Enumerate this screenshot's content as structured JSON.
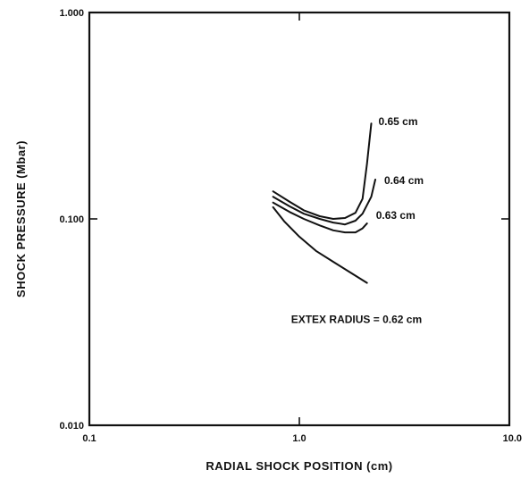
{
  "chart_data": {
    "type": "line",
    "xlabel": "RADIAL SHOCK POSITION (cm)",
    "ylabel": "SHOCK PRESSURE (Mbar)",
    "x_scale": "log",
    "y_scale": "log",
    "xlim": [
      0.1,
      10.0
    ],
    "ylim": [
      0.01,
      1.0
    ],
    "x_ticks": [
      {
        "value": 0.1,
        "label": "0.1"
      },
      {
        "value": 1.0,
        "label": "1.0"
      },
      {
        "value": 10.0,
        "label": "10.0"
      }
    ],
    "y_ticks": [
      {
        "value": 0.01,
        "label": "0.010"
      },
      {
        "value": 0.1,
        "label": "0.100"
      },
      {
        "value": 1.0,
        "label": "1.000"
      }
    ],
    "grid": false,
    "series": [
      {
        "name": "EXTEX RADIUS = 0.62 cm",
        "x": [
          0.75,
          0.85,
          1.0,
          1.2,
          1.45,
          1.75,
          2.1
        ],
        "y": [
          0.114,
          0.097,
          0.082,
          0.07,
          0.062,
          0.055,
          0.049
        ]
      },
      {
        "name": "0.63 cm",
        "x": [
          0.75,
          0.9,
          1.05,
          1.25,
          1.45,
          1.65,
          1.85,
          2.0,
          2.1
        ],
        "y": [
          0.12,
          0.108,
          0.1,
          0.093,
          0.088,
          0.086,
          0.086,
          0.09,
          0.095
        ]
      },
      {
        "name": "0.64 cm",
        "x": [
          0.75,
          0.9,
          1.05,
          1.25,
          1.45,
          1.65,
          1.85,
          2.0,
          2.2,
          2.3
        ],
        "y": [
          0.128,
          0.115,
          0.106,
          0.1,
          0.096,
          0.094,
          0.098,
          0.106,
          0.128,
          0.155
        ]
      },
      {
        "name": "0.65 cm",
        "x": [
          0.75,
          0.9,
          1.05,
          1.25,
          1.45,
          1.65,
          1.85,
          2.0,
          2.1,
          2.2
        ],
        "y": [
          0.136,
          0.121,
          0.11,
          0.103,
          0.1,
          0.101,
          0.107,
          0.125,
          0.185,
          0.29
        ]
      }
    ]
  }
}
